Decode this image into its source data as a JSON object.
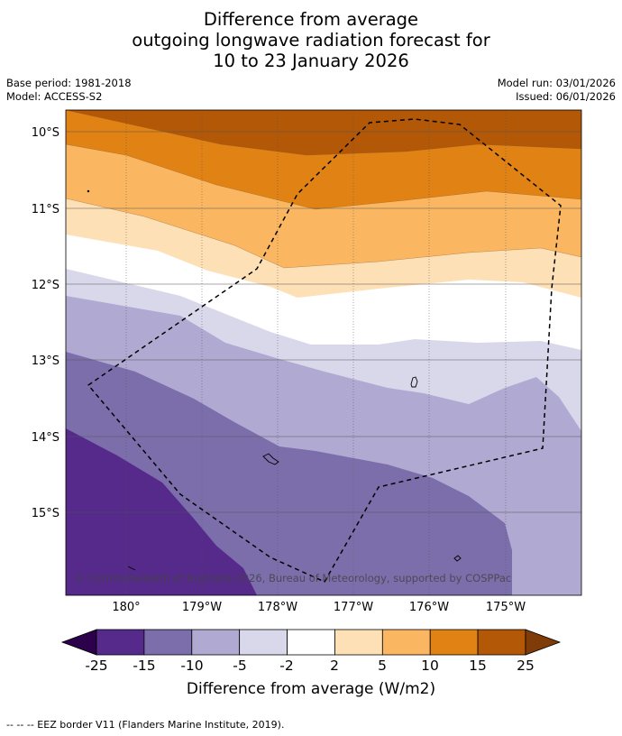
{
  "title": {
    "line1": "Difference from average",
    "line2": "outgoing longwave radiation forecast for",
    "line3": "10 to 23 January 2026"
  },
  "meta_left": {
    "base_period": "Base period: 1981-2018",
    "model": "Model: ACCESS-S2"
  },
  "meta_right": {
    "model_run": "Model run: 03/01/2026",
    "issued": "Issued: 06/01/2026"
  },
  "map": {
    "lat_labels": [
      "10°S",
      "11°S",
      "12°S",
      "13°S",
      "14°S",
      "15°S"
    ],
    "lon_labels": [
      "180°",
      "179°W",
      "178°W",
      "177°W",
      "176°W",
      "175°W"
    ],
    "copyright": "© Commonwealth of Australia 2026, Bureau of Meteorology, supported by COSPPac"
  },
  "colorbar": {
    "title": "Difference from average (W/m2)",
    "ticks": [
      "-25",
      "-15",
      "-10",
      "-5",
      "-2",
      "2",
      "5",
      "10",
      "15",
      "25"
    ],
    "colors": [
      "#552a8b",
      "#7b6eab",
      "#b0aad2",
      "#d9d8eb",
      "#ffffff",
      "#fee0b6",
      "#fbb661",
      "#e08214",
      "#b35806"
    ],
    "under_color": "#2d004b",
    "over_color": "#7f3b08"
  },
  "footer": {
    "legend": "--  --  -- EEZ border V11 (Flanders Marine Institute, 2019)."
  }
}
